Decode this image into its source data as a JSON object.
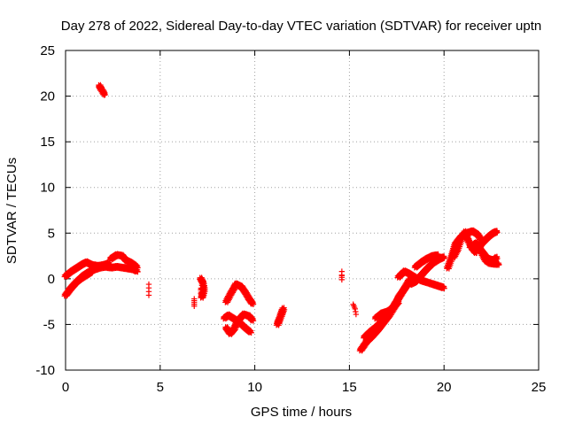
{
  "chart_data": {
    "type": "scatter",
    "title": "Day 278 of 2022, Sidereal Day-to-day VTEC variation (SDTVAR) for receiver uptn",
    "xlabel": "GPS time / hours",
    "ylabel": "SDTVAR / TECUs",
    "xlim": [
      0,
      25
    ],
    "ylim": [
      -10,
      25
    ],
    "xticks": [
      0,
      5,
      10,
      15,
      20,
      25
    ],
    "yticks": [
      -10,
      -5,
      0,
      5,
      10,
      15,
      20,
      25
    ],
    "grid": true,
    "marker": "plus",
    "color": "#ff0000",
    "series": [
      {
        "name": "SDTVAR",
        "segments": [
          {
            "x": [
              0.0,
              0.3,
              0.6,
              0.9,
              1.2,
              1.5,
              1.8,
              2.1,
              2.4,
              2.7,
              3.0,
              3.3,
              3.6,
              3.8
            ],
            "y": [
              -1.8,
              -1.0,
              -0.3,
              0.3,
              0.7,
              1.0,
              1.2,
              1.3,
              1.2,
              1.3,
              1.2,
              1.1,
              1.0,
              0.8
            ]
          },
          {
            "x": [
              0.0,
              0.3,
              0.6,
              0.9,
              1.1,
              1.4,
              1.7,
              2.0,
              2.3
            ],
            "y": [
              0.3,
              0.8,
              1.2,
              1.6,
              1.8,
              1.5,
              1.4,
              1.5,
              1.7
            ]
          },
          {
            "x": [
              0.2,
              0.5,
              0.8,
              1.1,
              1.4
            ],
            "y": [
              -1.2,
              -0.5,
              0.0,
              0.4,
              0.8
            ]
          },
          {
            "x": [
              2.4,
              2.7,
              3.0,
              3.2,
              3.5,
              3.7,
              3.8
            ],
            "y": [
              2.2,
              2.6,
              2.5,
              2.0,
              1.7,
              1.4,
              1.2
            ]
          },
          {
            "x": [
              1.8,
              1.9,
              2.0,
              2.05
            ],
            "y": [
              21.1,
              20.7,
              20.4,
              20.1
            ]
          },
          {
            "x": [
              4.4,
              4.4
            ],
            "y": [
              -0.6,
              -1.8
            ]
          },
          {
            "x": [
              6.8,
              6.8,
              6.8
            ],
            "y": [
              -2.2,
              -2.6,
              -3.0
            ]
          },
          {
            "x": [
              7.15,
              7.25,
              7.3,
              7.3,
              7.25,
              7.2,
              7.2
            ],
            "y": [
              0.0,
              -0.4,
              -0.9,
              -1.3,
              -1.7,
              -2.0,
              -0.7
            ]
          },
          {
            "x": [
              8.5,
              8.7,
              8.9,
              9.0,
              9.3,
              9.5,
              9.7,
              9.9
            ],
            "y": [
              -2.5,
              -1.7,
              -1.0,
              -0.6,
              -0.9,
              -1.5,
              -2.2,
              -2.8
            ]
          },
          {
            "x": [
              8.4,
              8.6,
              8.9,
              9.2,
              9.5,
              9.8
            ],
            "y": [
              -4.3,
              -4.0,
              -4.4,
              -4.8,
              -5.4,
              -5.9
            ]
          },
          {
            "x": [
              8.5,
              8.7,
              8.9,
              9.1,
              9.4,
              9.7,
              9.9
            ],
            "y": [
              -5.4,
              -6.0,
              -5.5,
              -4.6,
              -3.9,
              -4.1,
              -4.6
            ]
          },
          {
            "x": [
              11.2,
              11.3,
              11.4,
              11.5,
              11.35,
              11.2
            ],
            "y": [
              -5.0,
              -4.4,
              -3.8,
              -3.3,
              -4.2,
              -4.9
            ]
          },
          {
            "x": [
              14.6,
              14.6,
              14.6
            ],
            "y": [
              0.4,
              -0.1,
              0.8
            ]
          },
          {
            "x": [
              15.2,
              15.3,
              15.35
            ],
            "y": [
              -2.8,
              -3.3,
              -3.9
            ]
          },
          {
            "x": [
              15.6,
              15.9,
              16.2,
              16.5,
              16.8,
              17.1,
              17.4,
              17.6,
              17.8,
              18.0
            ],
            "y": [
              -7.8,
              -6.9,
              -6.3,
              -5.6,
              -4.8,
              -4.0,
              -3.0,
              -2.0,
              -1.4,
              -0.8
            ]
          },
          {
            "x": [
              15.8,
              16.1,
              16.4,
              16.7,
              17.0,
              17.3,
              17.6,
              17.9,
              18.2
            ],
            "y": [
              -6.4,
              -5.8,
              -5.3,
              -4.7,
              -4.0,
              -3.1,
              -2.1,
              -1.1,
              0.0
            ]
          },
          {
            "x": [
              16.4,
              16.7,
              17.0,
              17.3,
              17.6
            ],
            "y": [
              -4.3,
              -3.8,
              -3.6,
              -3.2,
              -2.5
            ]
          },
          {
            "x": [
              17.6,
              17.9,
              18.2,
              18.5,
              18.8,
              19.1,
              19.4,
              19.7,
              20.0
            ],
            "y": [
              0.2,
              0.8,
              0.5,
              0.1,
              -0.2,
              -0.4,
              -0.6,
              -0.8,
              -1.0
            ]
          },
          {
            "x": [
              18.2,
              18.5,
              18.8,
              19.1,
              19.4,
              19.7,
              20.0
            ],
            "y": [
              -0.6,
              -0.3,
              0.4,
              1.1,
              1.7,
              2.1,
              2.4
            ]
          },
          {
            "x": [
              18.5,
              18.8,
              19.1,
              19.4,
              19.7
            ],
            "y": [
              1.3,
              1.8,
              2.2,
              2.5,
              2.6
            ]
          },
          {
            "x": [
              20.2,
              20.4,
              20.6,
              20.9,
              21.2,
              21.5,
              21.8,
              22.0
            ],
            "y": [
              1.2,
              2.4,
              3.8,
              4.6,
              5.0,
              5.2,
              4.8,
              4.1
            ]
          },
          {
            "x": [
              20.5,
              20.7,
              20.9,
              21.1,
              21.3,
              21.5,
              21.7
            ],
            "y": [
              2.4,
              3.2,
              4.4,
              5.1,
              4.1,
              3.3,
              2.8
            ]
          },
          {
            "x": [
              21.4,
              21.7,
              22.0,
              22.3,
              22.6,
              22.8
            ],
            "y": [
              3.5,
              3.9,
              3.0,
              2.2,
              2.0,
              2.4
            ]
          },
          {
            "x": [
              21.8,
              22.1,
              22.4,
              22.6,
              22.8
            ],
            "y": [
              3.4,
              4.1,
              4.7,
              5.0,
              5.2
            ]
          },
          {
            "x": [
              22.0,
              22.2,
              22.4,
              22.7,
              22.9
            ],
            "y": [
              2.8,
              2.0,
              1.7,
              1.6,
              1.6
            ]
          }
        ]
      }
    ]
  }
}
